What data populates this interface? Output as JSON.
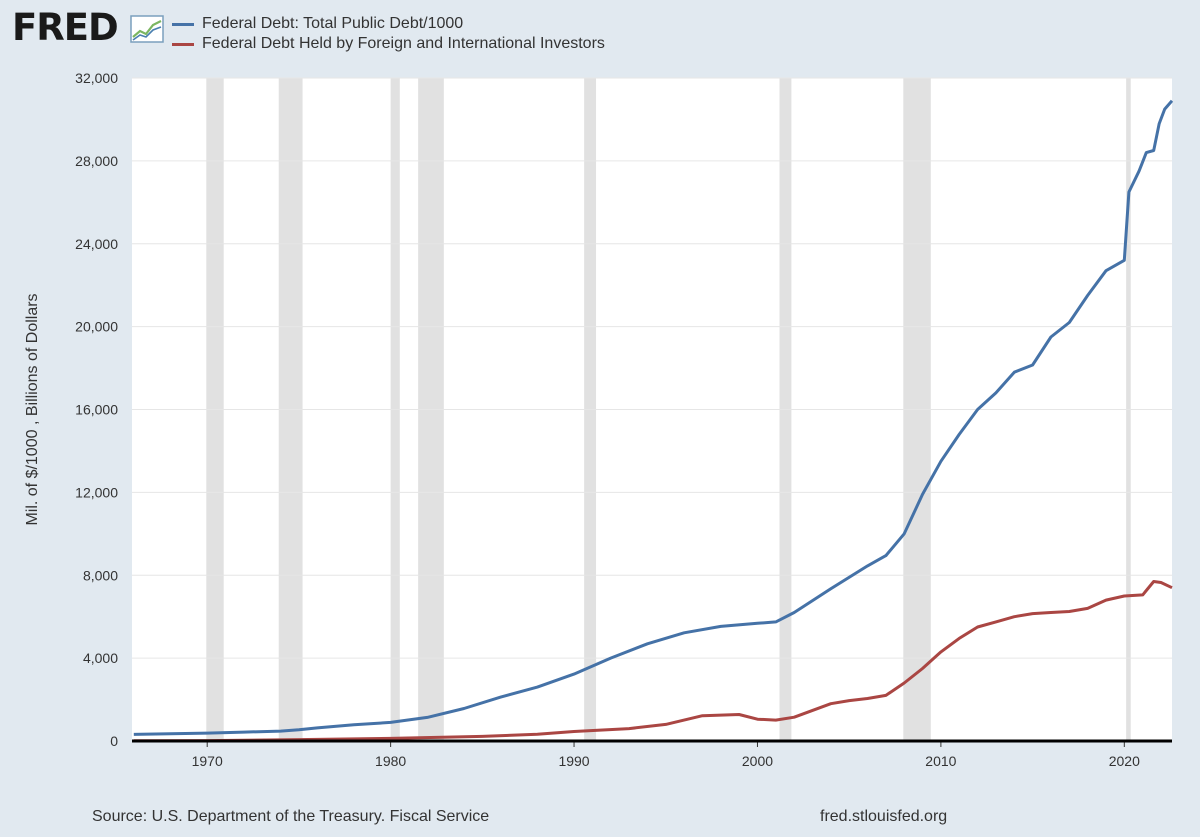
{
  "brand": {
    "name": "FRED"
  },
  "legend": [
    {
      "label": "Federal Debt: Total Public Debt/1000",
      "color": "#4572a7"
    },
    {
      "label": "Federal Debt Held by Foreign and International Investors",
      "color": "#aa4643"
    }
  ],
  "footer": {
    "source": "Source: U.S. Department of the Treasury. Fiscal Service",
    "site": "fred.stlouisfed.org"
  },
  "chart_data": {
    "type": "line",
    "title": "",
    "xlabel": "",
    "ylabel": "Mil. of $/1000 , Billions of Dollars",
    "xlim": [
      1965.9,
      2022.6
    ],
    "ylim": [
      0,
      32000
    ],
    "x_ticks": [
      1970,
      1980,
      1990,
      2000,
      2010,
      2020
    ],
    "y_ticks": [
      0,
      4000,
      8000,
      12000,
      16000,
      20000,
      24000,
      28000,
      32000
    ],
    "y_tick_labels": [
      "0",
      "4,000",
      "8,000",
      "12,000",
      "16,000",
      "20,000",
      "24,000",
      "28,000",
      "32,000"
    ],
    "recessions": [
      [
        1969.95,
        1970.9
      ],
      [
        1973.9,
        1975.2
      ],
      [
        1980.0,
        1980.5
      ],
      [
        1981.5,
        1982.9
      ],
      [
        1990.55,
        1991.2
      ],
      [
        2001.2,
        2001.85
      ],
      [
        2007.95,
        2009.45
      ],
      [
        2020.1,
        2020.35
      ]
    ],
    "series": [
      {
        "name": "Federal Debt: Total Public Debt/1000",
        "color": "#4572a7",
        "points": [
          [
            1966,
            320
          ],
          [
            1968,
            350
          ],
          [
            1970,
            380
          ],
          [
            1972,
            430
          ],
          [
            1974,
            480
          ],
          [
            1975,
            540
          ],
          [
            1976,
            630
          ],
          [
            1978,
            780
          ],
          [
            1980,
            900
          ],
          [
            1982,
            1140
          ],
          [
            1984,
            1570
          ],
          [
            1986,
            2120
          ],
          [
            1988,
            2600
          ],
          [
            1990,
            3230
          ],
          [
            1992,
            4000
          ],
          [
            1994,
            4690
          ],
          [
            1996,
            5220
          ],
          [
            1998,
            5530
          ],
          [
            2000,
            5680
          ],
          [
            2001,
            5750
          ],
          [
            2002,
            6200
          ],
          [
            2004,
            7350
          ],
          [
            2006,
            8450
          ],
          [
            2007,
            8950
          ],
          [
            2008,
            10000
          ],
          [
            2009,
            11900
          ],
          [
            2010,
            13500
          ],
          [
            2011,
            14800
          ],
          [
            2012,
            16000
          ],
          [
            2013,
            16800
          ],
          [
            2014,
            17800
          ],
          [
            2015,
            18150
          ],
          [
            2016,
            19500
          ],
          [
            2017,
            20200
          ],
          [
            2018,
            21500
          ],
          [
            2019,
            22700
          ],
          [
            2020.0,
            23200
          ],
          [
            2020.25,
            26500
          ],
          [
            2020.8,
            27500
          ],
          [
            2021.2,
            28400
          ],
          [
            2021.6,
            28500
          ],
          [
            2021.9,
            29800
          ],
          [
            2022.2,
            30500
          ],
          [
            2022.6,
            30900
          ]
        ]
      },
      {
        "name": "Federal Debt Held by Foreign and International Investors",
        "color": "#aa4643",
        "points": [
          [
            1966,
            15
          ],
          [
            1970,
            20
          ],
          [
            1975,
            66
          ],
          [
            1980,
            125
          ],
          [
            1985,
            220
          ],
          [
            1988,
            330
          ],
          [
            1990,
            460
          ],
          [
            1993,
            600
          ],
          [
            1995,
            800
          ],
          [
            1997,
            1220
          ],
          [
            1999,
            1280
          ],
          [
            2000,
            1050
          ],
          [
            2001,
            1010
          ],
          [
            2002,
            1150
          ],
          [
            2004,
            1800
          ],
          [
            2005,
            1950
          ],
          [
            2006,
            2050
          ],
          [
            2007,
            2200
          ],
          [
            2008,
            2800
          ],
          [
            2009,
            3500
          ],
          [
            2010,
            4300
          ],
          [
            2011,
            4950
          ],
          [
            2012,
            5500
          ],
          [
            2013,
            5750
          ],
          [
            2014,
            6000
          ],
          [
            2015,
            6150
          ],
          [
            2016,
            6200
          ],
          [
            2017,
            6250
          ],
          [
            2018,
            6400
          ],
          [
            2019,
            6800
          ],
          [
            2020.0,
            7000
          ],
          [
            2021,
            7050
          ],
          [
            2021.6,
            7700
          ],
          [
            2022.0,
            7650
          ],
          [
            2022.6,
            7400
          ]
        ]
      }
    ]
  }
}
